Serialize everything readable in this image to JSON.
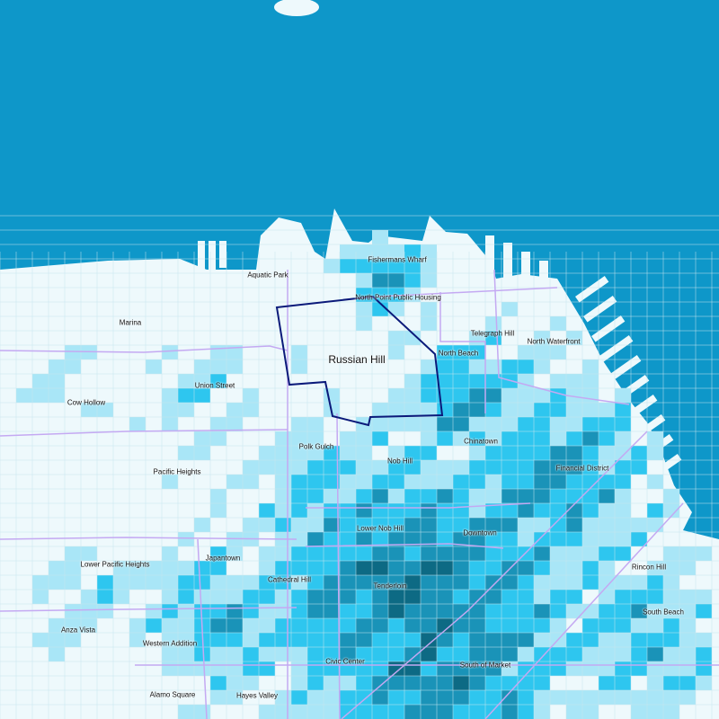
{
  "map": {
    "highlighted_neighborhood": "Russian Hill",
    "colors": {
      "water": "#0e97c9",
      "land": "#eef9fc",
      "level_1": "#a9e6f7",
      "level_2": "#2ec6ef",
      "level_3": "#1a93b8",
      "level_4": "#0d6a84",
      "boundary": "#c4a9f2",
      "highlight_outline": "#0b1a7a",
      "street": "#c7e5ee"
    },
    "labels": {
      "aquatic_park": "Aquatic Park",
      "fishermans_wharf": "Fishermans Wharf",
      "north_point": "North Point Public Housing",
      "marina": "Marina",
      "russian_hill": "Russian Hill",
      "telegraph_hill": "Telegraph Hill",
      "north_waterfront": "North Waterfront",
      "north_beach": "North Beach",
      "union_street": "Union Street",
      "cow_hollow": "Cow Hollow",
      "chinatown": "Chinatown",
      "polk_gulch": "Polk Gulch",
      "nob_hill": "Nob Hill",
      "pacific_heights": "Pacific Heights",
      "financial_district": "Financial District",
      "lower_nob_hill": "Lower Nob Hill",
      "downtown": "Downtown",
      "rincon_hill": "Rincon Hill",
      "japantown": "Japantown",
      "lower_pacific_heights": "Lower Pacific Heights",
      "cathedral_hill": "Cathedral Hill",
      "tenderloin": "Tenderloin",
      "south_beach": "South Beach",
      "anza_vista": "Anza Vista",
      "western_addition": "Western Addition",
      "civic_center": "Civic Center",
      "south_of_market": "South of Market",
      "alamo_square": "Alamo Square",
      "hayes_valley": "Hayes Valley"
    }
  }
}
